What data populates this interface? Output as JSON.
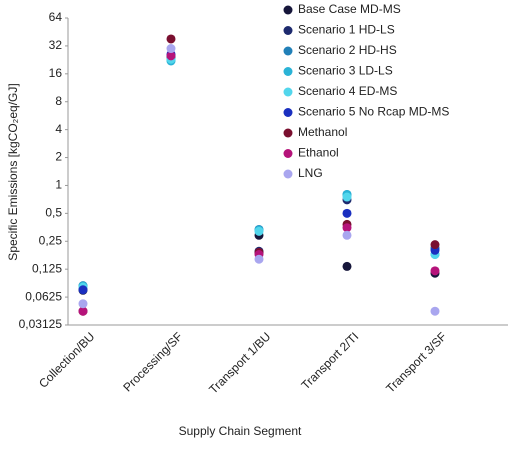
{
  "chart_data": {
    "type": "scatter",
    "x_label": "Supply Chain Segment",
    "y_label": "Specific Emissions [kgCO₂eq/GJ]",
    "log_scale": "y",
    "categories": [
      "Collection/BU",
      "Processing/SF",
      "Transport 1/BU",
      "Transport 2/TI",
      "Transport 3/SF"
    ],
    "ylim": [
      0.03125,
      64
    ],
    "yticks": [
      {
        "value": 0.03125,
        "label": "0,03125"
      },
      {
        "value": 0.0625,
        "label": "0,0625"
      },
      {
        "value": 0.125,
        "label": "0,125"
      },
      {
        "value": 0.25,
        "label": "0,25"
      },
      {
        "value": 0.5,
        "label": "0,5"
      },
      1,
      2,
      4,
      8,
      16,
      32,
      64
    ],
    "series": [
      {
        "name": "Base Case MD-MS",
        "color": "#16163a",
        "values": [
          0.074,
          24,
          0.29,
          0.134,
          0.113
        ]
      },
      {
        "name": "Scenario 1 HD-LS",
        "color": "#1d2a6e",
        "values": [
          0.076,
          25,
          0.195,
          0.7,
          0.21
        ]
      },
      {
        "name": "Scenario 2 HD-HS",
        "color": "#2180b8",
        "values": [
          0.083,
          23,
          0.335,
          0.8,
          0.21
        ]
      },
      {
        "name": "Scenario 3 LD-LS",
        "color": "#2ab3d6",
        "values": [
          0.082,
          22,
          0.33,
          0.8,
          0.18
        ]
      },
      {
        "name": "Scenario 4 ED-MS",
        "color": "#52d6ec",
        "values": [
          0.08,
          23,
          0.32,
          0.75,
          0.18
        ]
      },
      {
        "name": "Scenario 5 No Rcap MD-MS",
        "color": "#1a2fc0",
        "values": [
          0.075,
          26,
          0.19,
          0.5,
          0.2
        ]
      },
      {
        "name": "Methanol",
        "color": "#7a0f2f",
        "values": [
          0.044,
          38,
          0.19,
          0.38,
          0.23
        ]
      },
      {
        "name": "Ethanol",
        "color": "#b5137a",
        "values": [
          0.044,
          25,
          0.18,
          0.35,
          0.12
        ]
      },
      {
        "name": "LNG",
        "color": "#a9a6ef",
        "values": [
          0.053,
          30,
          0.16,
          0.29,
          0.044
        ]
      }
    ]
  }
}
